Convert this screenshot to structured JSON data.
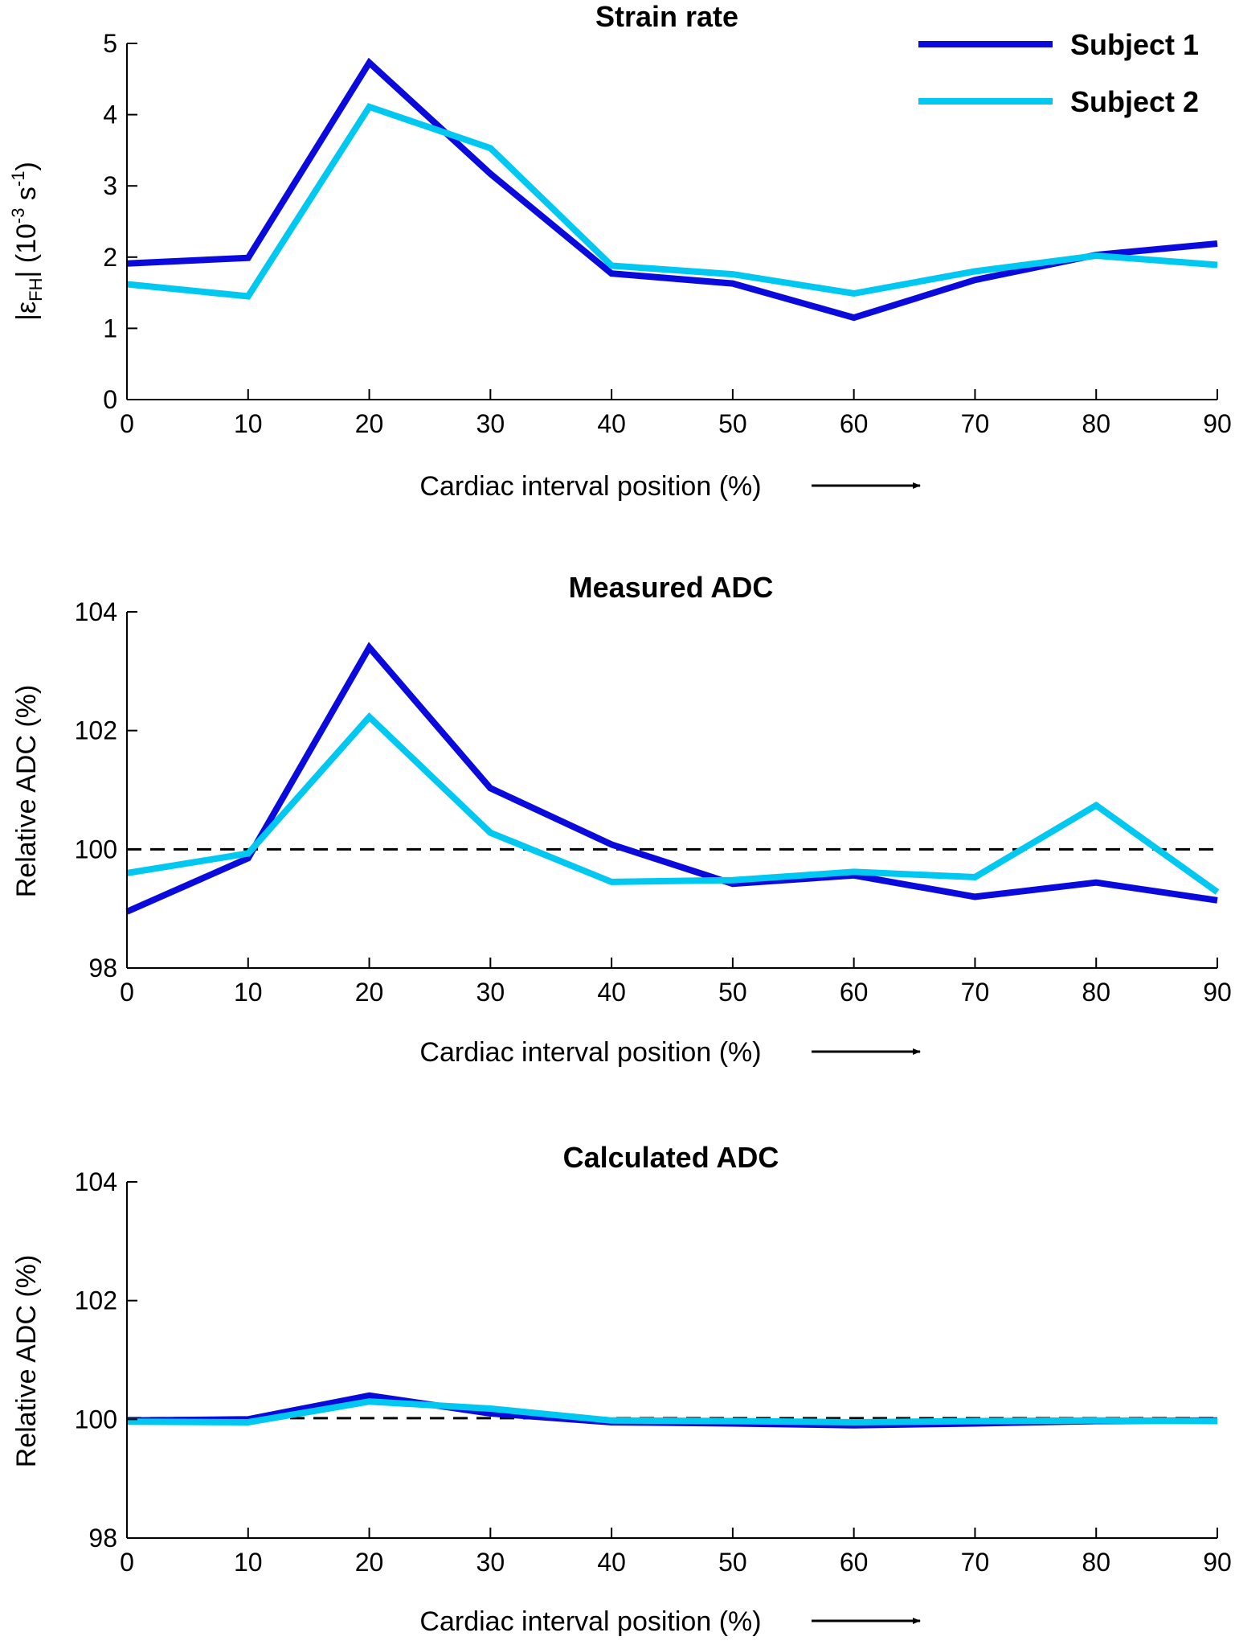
{
  "legend": {
    "entries": [
      {
        "name": "Subject 1",
        "color": "#0a0adc"
      },
      {
        "name": "Subject 2",
        "color": "#00c8f0"
      }
    ]
  },
  "chart_data": [
    {
      "type": "line",
      "title": "Strain rate",
      "xlabel": "Cardiac interval position (%)",
      "ylabel_prefix": "|ε",
      "ylabel_sub": "FH",
      "ylabel_mid": "| (10",
      "ylabel_sup1": "-3",
      "ylabel_mid2": " s",
      "ylabel_sup2": "-1",
      "ylabel_end": ")",
      "x": [
        0,
        10,
        20,
        30,
        40,
        50,
        60,
        70,
        80,
        90
      ],
      "xlim": [
        0,
        90
      ],
      "ylim": [
        0,
        5
      ],
      "yticks": [
        0,
        1,
        2,
        3,
        4,
        5
      ],
      "xticks": [
        0,
        10,
        20,
        30,
        40,
        50,
        60,
        70,
        80,
        90
      ],
      "legend_position": "top-right",
      "series": [
        {
          "name": "Subject 1",
          "color": "#0a0adc",
          "values": [
            1.91,
            1.99,
            4.73,
            3.17,
            1.77,
            1.63,
            1.15,
            1.68,
            2.03,
            2.19
          ]
        },
        {
          "name": "Subject 2",
          "color": "#00c8f0",
          "values": [
            1.62,
            1.45,
            4.11,
            3.53,
            1.88,
            1.76,
            1.49,
            1.8,
            2.02,
            1.89
          ]
        }
      ]
    },
    {
      "type": "line",
      "title": "Measured ADC",
      "xlabel": "Cardiac interval position (%)",
      "ylabel": "Relative ADC (%)",
      "x": [
        0,
        10,
        20,
        30,
        40,
        50,
        60,
        70,
        80,
        90
      ],
      "xlim": [
        0,
        90
      ],
      "ylim": [
        98,
        104
      ],
      "yticks": [
        98,
        100,
        102,
        104
      ],
      "xticks": [
        0,
        10,
        20,
        30,
        40,
        50,
        60,
        70,
        80,
        90
      ],
      "reference_line": 100,
      "series": [
        {
          "name": "Subject 1",
          "color": "#0a0adc",
          "values": [
            98.95,
            99.85,
            103.4,
            101.03,
            100.08,
            99.42,
            99.56,
            99.2,
            99.44,
            99.14
          ]
        },
        {
          "name": "Subject 2",
          "color": "#00c8f0",
          "values": [
            99.6,
            99.93,
            102.23,
            100.28,
            99.45,
            99.48,
            99.62,
            99.53,
            100.74,
            99.28
          ]
        }
      ]
    },
    {
      "type": "line",
      "title": "Calculated ADC",
      "xlabel": "Cardiac interval position (%)",
      "ylabel": "Relative ADC (%)",
      "x": [
        0,
        10,
        20,
        30,
        40,
        50,
        60,
        70,
        80,
        90
      ],
      "xlim": [
        0,
        90
      ],
      "ylim": [
        98,
        104
      ],
      "yticks": [
        98,
        100,
        102,
        104
      ],
      "xticks": [
        0,
        10,
        20,
        30,
        40,
        50,
        60,
        70,
        80,
        90
      ],
      "reference_line": 100.02,
      "series": [
        {
          "name": "Subject 1",
          "color": "#0a0adc",
          "values": [
            99.98,
            100.0,
            100.4,
            100.1,
            99.95,
            99.93,
            99.9,
            99.93,
            99.97,
            99.98
          ]
        },
        {
          "name": "Subject 2",
          "color": "#00c8f0",
          "values": [
            99.96,
            99.95,
            100.3,
            100.18,
            99.98,
            99.97,
            99.95,
            99.97,
            99.98,
            99.97
          ]
        }
      ]
    }
  ]
}
